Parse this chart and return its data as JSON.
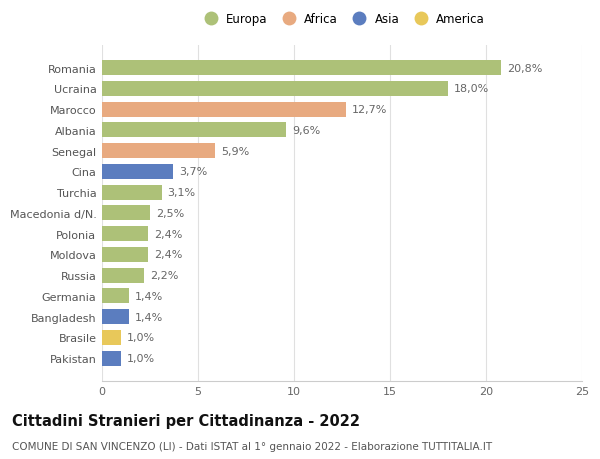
{
  "countries": [
    "Romania",
    "Ucraina",
    "Marocco",
    "Albania",
    "Senegal",
    "Cina",
    "Turchia",
    "Macedonia d/N.",
    "Polonia",
    "Moldova",
    "Russia",
    "Germania",
    "Bangladesh",
    "Brasile",
    "Pakistan"
  ],
  "values": [
    20.8,
    18.0,
    12.7,
    9.6,
    5.9,
    3.7,
    3.1,
    2.5,
    2.4,
    2.4,
    2.2,
    1.4,
    1.4,
    1.0,
    1.0
  ],
  "labels": [
    "20,8%",
    "18,0%",
    "12,7%",
    "9,6%",
    "5,9%",
    "3,7%",
    "3,1%",
    "2,5%",
    "2,4%",
    "2,4%",
    "2,2%",
    "1,4%",
    "1,4%",
    "1,0%",
    "1,0%"
  ],
  "continents": [
    "Europa",
    "Europa",
    "Africa",
    "Europa",
    "Africa",
    "Asia",
    "Europa",
    "Europa",
    "Europa",
    "Europa",
    "Europa",
    "Europa",
    "Asia",
    "America",
    "Asia"
  ],
  "colors": {
    "Europa": "#adc178",
    "Africa": "#e8aa80",
    "Asia": "#5b7dbf",
    "America": "#e8c85a"
  },
  "xlim": [
    0,
    25
  ],
  "xticks": [
    0,
    5,
    10,
    15,
    20,
    25
  ],
  "title": "Cittadini Stranieri per Cittadinanza - 2022",
  "subtitle": "COMUNE DI SAN VINCENZO (LI) - Dati ISTAT al 1° gennaio 2022 - Elaborazione TUTTITALIA.IT",
  "background_color": "#ffffff",
  "bar_height": 0.72,
  "label_fontsize": 8,
  "ytick_fontsize": 8,
  "xtick_fontsize": 8,
  "title_fontsize": 10.5,
  "subtitle_fontsize": 7.5,
  "legend_order": [
    "Europa",
    "Africa",
    "Asia",
    "America"
  ]
}
